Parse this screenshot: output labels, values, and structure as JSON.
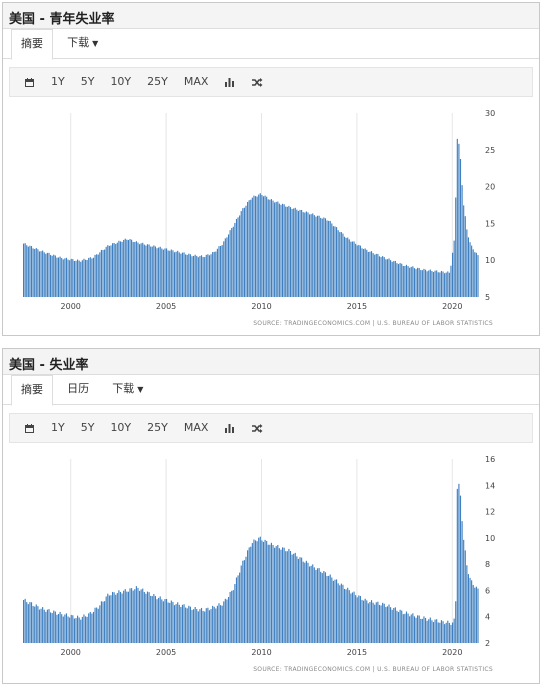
{
  "panel1": {
    "title": "美国 - 青年失业率",
    "tabs": [
      {
        "label": "摘要",
        "active": true
      },
      {
        "label": "下载",
        "dropdown": true
      }
    ],
    "toolbar": {
      "ranges": [
        "1Y",
        "5Y",
        "10Y",
        "25Y",
        "MAX"
      ]
    },
    "source": "SOURCE: TRADINGECONOMICS.COM  |  U.S. BUREAU OF LABOR STATISTICS"
  },
  "panel2": {
    "title": "美国 - 失业率",
    "tabs": [
      {
        "label": "摘要",
        "active": true
      },
      {
        "label": "日历"
      },
      {
        "label": "下载",
        "dropdown": true
      }
    ],
    "toolbar": {
      "ranges": [
        "1Y",
        "5Y",
        "10Y",
        "25Y",
        "MAX"
      ]
    },
    "source": "SOURCE: TRADINGECONOMICS.COM  |  U.S. BUREAU OF LABOR STATISTICS"
  },
  "colors": {
    "bar": "#3f7fbf",
    "grid": "#e6e6e6"
  },
  "chart_data": [
    {
      "type": "bar",
      "title": "美国 - 青年失业率",
      "xlabel": "",
      "ylabel": "",
      "ylim": [
        5,
        30
      ],
      "yticks": [
        5,
        10,
        15,
        20,
        25,
        30
      ],
      "xticks": [
        2000,
        2005,
        2010,
        2015,
        2020
      ],
      "xrange": [
        1997.5,
        2021.4
      ],
      "grid": "vertical",
      "keypoints": [
        [
          1997.5,
          12.3
        ],
        [
          1998.5,
          11.2
        ],
        [
          1999.5,
          10.3
        ],
        [
          2000.5,
          9.9
        ],
        [
          2001.2,
          10.4
        ],
        [
          2002.0,
          12.0
        ],
        [
          2003.0,
          12.9
        ],
        [
          2003.5,
          12.4
        ],
        [
          2004.5,
          11.8
        ],
        [
          2005.5,
          11.2
        ],
        [
          2006.5,
          10.6
        ],
        [
          2007.0,
          10.5
        ],
        [
          2007.5,
          11.0
        ],
        [
          2008.0,
          12.3
        ],
        [
          2008.5,
          14.5
        ],
        [
          2009.0,
          16.8
        ],
        [
          2009.5,
          18.5
        ],
        [
          2010.0,
          19.0
        ],
        [
          2010.5,
          18.2
        ],
        [
          2011.5,
          17.2
        ],
        [
          2012.5,
          16.4
        ],
        [
          2013.5,
          15.5
        ],
        [
          2014.5,
          13.0
        ],
        [
          2015.5,
          11.4
        ],
        [
          2016.5,
          10.3
        ],
        [
          2017.5,
          9.3
        ],
        [
          2018.5,
          8.7
        ],
        [
          2019.5,
          8.4
        ],
        [
          2019.9,
          8.3
        ],
        [
          2020.15,
          13.0
        ],
        [
          2020.3,
          27.4
        ],
        [
          2020.45,
          24.0
        ],
        [
          2020.6,
          18.0
        ],
        [
          2020.8,
          14.0
        ],
        [
          2021.0,
          12.0
        ],
        [
          2021.4,
          10.5
        ]
      ]
    },
    {
      "type": "bar",
      "title": "美国 - 失业率",
      "xlabel": "",
      "ylabel": "",
      "ylim": [
        2,
        16
      ],
      "yticks": [
        2,
        4,
        6,
        8,
        10,
        12,
        14,
        16
      ],
      "xticks": [
        2000,
        2005,
        2010,
        2015,
        2020
      ],
      "xrange": [
        1997.5,
        2021.4
      ],
      "grid": "vertical",
      "keypoints": [
        [
          1997.5,
          5.3
        ],
        [
          1998.5,
          4.6
        ],
        [
          1999.5,
          4.2
        ],
        [
          2000.5,
          3.9
        ],
        [
          2001.0,
          4.2
        ],
        [
          2001.5,
          4.8
        ],
        [
          2002.0,
          5.7
        ],
        [
          2003.0,
          6.0
        ],
        [
          2003.5,
          6.2
        ],
        [
          2004.5,
          5.5
        ],
        [
          2005.5,
          5.0
        ],
        [
          2006.5,
          4.6
        ],
        [
          2007.0,
          4.5
        ],
        [
          2007.5,
          4.7
        ],
        [
          2008.0,
          5.0
        ],
        [
          2008.5,
          6.0
        ],
        [
          2009.0,
          8.0
        ],
        [
          2009.5,
          9.6
        ],
        [
          2009.9,
          10.0
        ],
        [
          2010.5,
          9.5
        ],
        [
          2011.5,
          9.0
        ],
        [
          2012.5,
          8.0
        ],
        [
          2013.5,
          7.2
        ],
        [
          2014.5,
          6.1
        ],
        [
          2015.5,
          5.2
        ],
        [
          2016.5,
          4.9
        ],
        [
          2017.5,
          4.3
        ],
        [
          2018.5,
          3.9
        ],
        [
          2019.5,
          3.6
        ],
        [
          2020.1,
          3.5
        ],
        [
          2020.2,
          4.4
        ],
        [
          2020.3,
          14.7
        ],
        [
          2020.45,
          13.3
        ],
        [
          2020.6,
          10.2
        ],
        [
          2020.8,
          7.8
        ],
        [
          2021.0,
          6.7
        ],
        [
          2021.4,
          6.0
        ]
      ]
    }
  ]
}
